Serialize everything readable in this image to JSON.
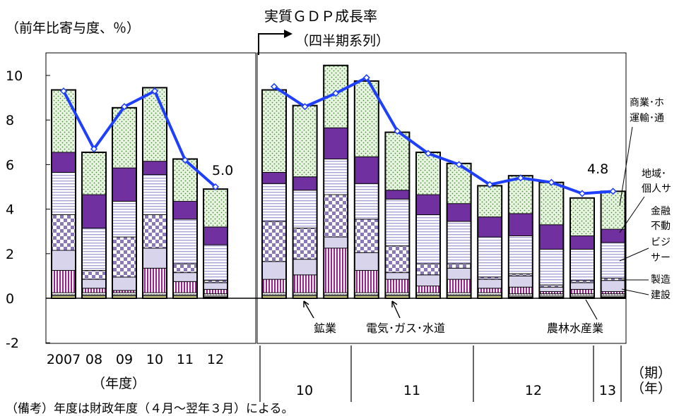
{
  "header": {
    "unit_label": "（前年比寄与度、％）",
    "title_line1": "実質ＧＤＰ成長率",
    "title_line2": "（四半期系列）"
  },
  "annotations": {
    "annual_last": "5.0",
    "quarterly_last": "4.8",
    "fiscal_year_label": "（年度）",
    "period_label": "（期）",
    "year_label": "（年）",
    "note": "（備考）年度は財政年度（４月～翌年３月）による。"
  },
  "sector_labels": {
    "commerce": "商業･ホ",
    "transport": "運輸･通",
    "regional": "地域･",
    "personal": "個人サ",
    "finance": "金融",
    "realestate": "不動",
    "business": "ビジ",
    "service": "サー",
    "manufacturing": "製造",
    "construction": "建設",
    "mining": "鉱業",
    "utilities": "電気･ガス･水道",
    "agriculture": "農林水産業"
  },
  "chart_data": {
    "type": "bar",
    "stacked": true,
    "ylim": [
      -2,
      10.5
    ],
    "yticks": [
      "-2",
      "0",
      "2",
      "4",
      "6",
      "8",
      "10"
    ],
    "annual_categories": [
      "2007",
      "08",
      "09",
      "10",
      "11",
      "12"
    ],
    "quarter_years": [
      "10",
      "11",
      "12",
      "13"
    ],
    "total_line_annual": [
      9.3,
      6.7,
      8.6,
      9.3,
      6.2,
      5.0
    ],
    "total_line_quarterly": [
      9.5,
      8.6,
      9.2,
      9.9,
      7.5,
      6.5,
      6.0,
      5.1,
      5.4,
      5.2,
      4.7,
      4.8
    ],
    "series": [
      {
        "key": "agri",
        "color": "#ffff99",
        "annual": [
          0.1,
          0.1,
          0.1,
          0.1,
          0.1,
          0.05
        ],
        "quarterly": [
          0.1,
          0.1,
          0.1,
          0.1,
          0.1,
          0.1,
          0.1,
          0.1,
          0.05,
          0.05,
          0.05,
          0.05
        ]
      },
      {
        "key": "mining",
        "color": "#ffffff",
        "annual": [
          0.05,
          0.05,
          0.05,
          0.05,
          0.05,
          0.05
        ],
        "quarterly": [
          0.05,
          0.05,
          0.05,
          0.05,
          0.05,
          0.05,
          0.05,
          0.05,
          0.05,
          0.05,
          0.05,
          0.05
        ]
      },
      {
        "key": "utilities",
        "color": "#ffffff",
        "annual": [
          0.1,
          0.1,
          0.1,
          0.1,
          0.1,
          0.1
        ],
        "quarterly": [
          0.1,
          0.1,
          0.1,
          0.1,
          0.1,
          0.1,
          0.1,
          0.1,
          0.1,
          0.1,
          0.1,
          0.1
        ]
      },
      {
        "key": "construction",
        "color": "#ffffff",
        "annual": [
          1.0,
          0.2,
          0.1,
          1.1,
          0.5,
          0.2
        ],
        "quarterly": [
          0.6,
          0.8,
          2.0,
          1.0,
          0.6,
          0.3,
          0.6,
          0.2,
          0.3,
          0.1,
          0.2,
          0.1
        ]
      },
      {
        "key": "manufacturing",
        "color": "#d8d4ec",
        "annual": [
          0.9,
          0.4,
          0.6,
          0.9,
          0.4,
          0.3
        ],
        "quarterly": [
          0.8,
          0.7,
          0.5,
          0.8,
          0.3,
          0.5,
          0.5,
          0.4,
          0.5,
          0.2,
          0.3,
          0.5
        ]
      },
      {
        "key": "finance_realestate",
        "color": "#ffffff",
        "annual": [
          1.6,
          0.4,
          1.8,
          1.5,
          0.4,
          0.1
        ],
        "quarterly": [
          1.8,
          1.4,
          1.9,
          1.5,
          1.2,
          0.5,
          0.2,
          0.1,
          0.1,
          0.1,
          0.1,
          0.1
        ]
      },
      {
        "key": "business_services",
        "color": "#ffffff",
        "annual": [
          1.9,
          1.9,
          1.6,
          1.8,
          2.0,
          1.6
        ],
        "quarterly": [
          1.7,
          1.7,
          1.6,
          1.6,
          2.1,
          2.2,
          1.9,
          1.8,
          1.7,
          1.6,
          1.4,
          1.6
        ]
      },
      {
        "key": "regional_personal",
        "color": "#7030a0",
        "annual": [
          0.9,
          1.5,
          1.5,
          0.6,
          0.8,
          0.8
        ],
        "quarterly": [
          0.5,
          0.6,
          1.4,
          1.2,
          0.4,
          0.9,
          0.8,
          0.9,
          1.0,
          1.1,
          0.6,
          0.6
        ]
      },
      {
        "key": "commerce_transport",
        "color": "#ffffff",
        "annual": [
          2.8,
          1.9,
          2.7,
          3.3,
          1.9,
          1.7
        ],
        "quarterly": [
          3.7,
          3.2,
          2.8,
          3.4,
          2.6,
          1.9,
          1.8,
          1.4,
          1.7,
          1.9,
          1.7,
          1.7
        ]
      }
    ]
  }
}
